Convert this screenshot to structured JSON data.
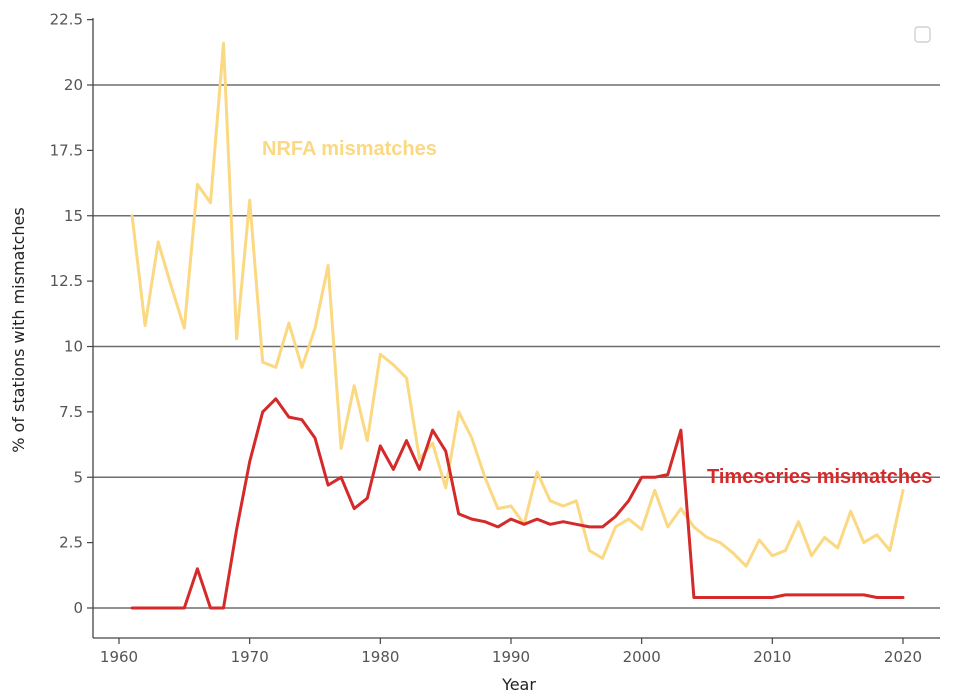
{
  "chart_data": {
    "type": "line",
    "xlabel": "Year",
    "ylabel": "% of stations with mismatches",
    "xlim": [
      1957,
      2023
    ],
    "ylim": [
      -2.2,
      22.5
    ],
    "xticks": [
      1960,
      1970,
      1980,
      1990,
      2000,
      2010,
      2020
    ],
    "yticks": [
      0,
      2.5,
      5,
      7.5,
      10,
      12.5,
      15,
      17.5,
      20,
      22.5
    ],
    "ytick_labels": [
      "0",
      "2.5",
      "5",
      "7.5",
      "10",
      "12.5",
      "15",
      "17.5",
      "20",
      "22.5"
    ],
    "horizontal_gridlines": [
      0,
      5,
      10,
      15,
      20
    ],
    "legend": "top-right (empty box)",
    "series": [
      {
        "name": "NRFA mismatches",
        "color": "#fbd882",
        "x": [
          1961,
          1962,
          1963,
          1964,
          1965,
          1966,
          1967,
          1968,
          1969,
          1970,
          1971,
          1972,
          1973,
          1974,
          1975,
          1976,
          1977,
          1978,
          1979,
          1980,
          1981,
          1982,
          1983,
          1984,
          1985,
          1986,
          1987,
          1988,
          1989,
          1990,
          1991,
          1992,
          1993,
          1994,
          1995,
          1996,
          1997,
          1998,
          1999,
          2000,
          2001,
          2002,
          2003,
          2004,
          2005,
          2006,
          2007,
          2008,
          2009,
          2010,
          2011,
          2012,
          2013,
          2014,
          2015,
          2016,
          2017,
          2018,
          2019,
          2020
        ],
        "y": [
          15.0,
          10.8,
          14.0,
          12.3,
          10.7,
          16.2,
          15.5,
          21.6,
          10.3,
          15.6,
          9.4,
          9.2,
          10.9,
          9.2,
          10.7,
          13.1,
          6.1,
          8.5,
          6.4,
          9.7,
          9.3,
          8.8,
          5.7,
          6.3,
          4.6,
          7.5,
          6.5,
          5.0,
          3.8,
          3.9,
          3.2,
          5.2,
          4.1,
          3.9,
          4.1,
          2.2,
          1.9,
          3.1,
          3.4,
          3.0,
          4.5,
          3.1,
          3.8,
          3.1,
          2.7,
          2.5,
          2.1,
          1.6,
          2.6,
          2.0,
          2.2,
          3.3,
          2.0,
          2.7,
          2.3,
          3.7,
          2.5,
          2.8,
          2.2,
          4.5
        ]
      },
      {
        "name": "Timeseries mismatches",
        "color": "#d42a2a",
        "x": [
          1961,
          1962,
          1963,
          1964,
          1965,
          1966,
          1967,
          1968,
          1969,
          1970,
          1971,
          1972,
          1973,
          1974,
          1975,
          1976,
          1977,
          1978,
          1979,
          1980,
          1981,
          1982,
          1983,
          1984,
          1985,
          1986,
          1987,
          1988,
          1989,
          1990,
          1991,
          1992,
          1993,
          1994,
          1995,
          1996,
          1997,
          1998,
          1999,
          2000,
          2001,
          2002,
          2003,
          2004,
          2005,
          2006,
          2007,
          2008,
          2009,
          2010,
          2011,
          2012,
          2013,
          2014,
          2015,
          2016,
          2017,
          2018,
          2019,
          2020
        ],
        "y": [
          0,
          0,
          0,
          0,
          0,
          1.5,
          0,
          0,
          3.0,
          5.6,
          7.5,
          8.0,
          7.3,
          7.2,
          6.5,
          4.7,
          5.0,
          3.8,
          4.2,
          6.2,
          5.3,
          6.4,
          5.3,
          6.8,
          6.0,
          3.6,
          3.4,
          3.3,
          3.1,
          3.4,
          3.2,
          3.4,
          3.2,
          3.3,
          3.2,
          3.1,
          3.1,
          3.5,
          4.1,
          5.0,
          5.0,
          5.1,
          6.8,
          0.4,
          0.4,
          0.4,
          0.4,
          0.4,
          0.4,
          0.4,
          0.5,
          0.5,
          0.5,
          0.5,
          0.5,
          0.5,
          0.5,
          0.4,
          0.4,
          0.4
        ]
      }
    ]
  }
}
